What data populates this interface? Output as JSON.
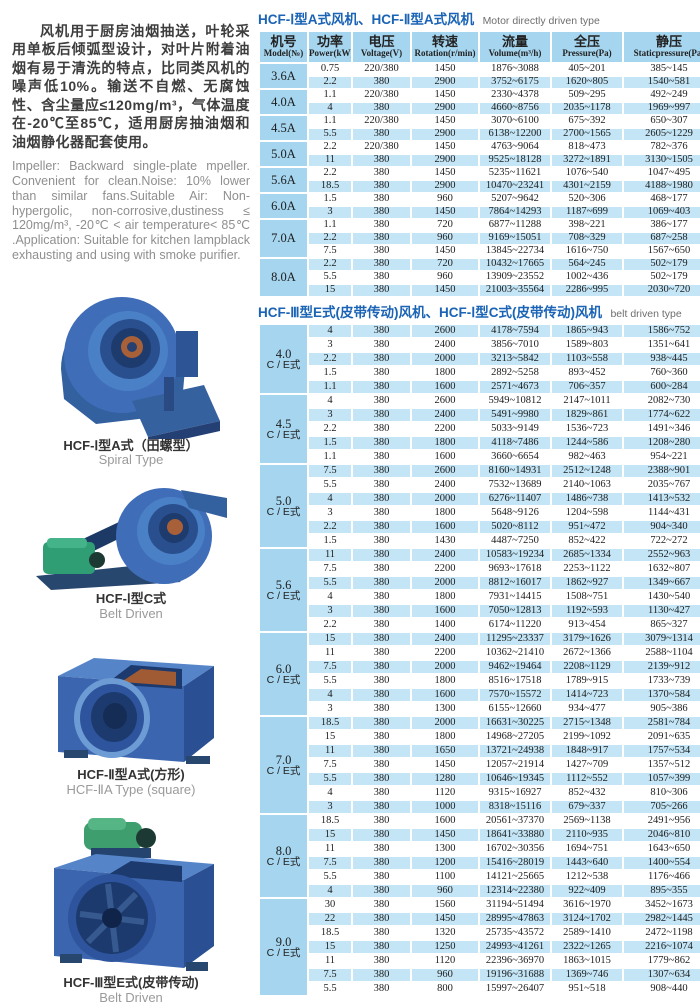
{
  "colors": {
    "title_blue": "#1a63b5",
    "header_bg": "#a5d5ef",
    "row_blue": "#c3e5f6",
    "fan_blue": "#3b66af"
  },
  "left": {
    "chinese_paragraph": "风机用于厨房油烟抽送，叶轮采用单板后倾弧型设计，对叶片附着油烟有易于清洗的特点，比同类风机的噪声低10%。输送不自燃、无腐蚀性、含尘量应≤120mg/m³，气体温度在-20℃至85℃，适用厨房抽油烟和油烟静化器配套使用。",
    "english_paragraph": "Impeller: Backward single-plate mpeller. Convenient for clean.Noise: 10% lower than similar fans.Suitable Air: Non-hypergolic, non-corrosive,dustiness ≤ 120mg/m³, -20℃ < air temperature< 85℃ .Application: Suitable for kitchen lampblack exhausting and using with smoke purifier.",
    "products": [
      {
        "caption_cn": "HCF-Ⅰ型A式（田螺型）",
        "caption_en": "Spiral Type"
      },
      {
        "caption_cn": "HCF-Ⅰ型C式",
        "caption_en": "Belt Driven"
      },
      {
        "caption_cn": "HCF-Ⅱ型A式(方形)",
        "caption_en": "HCF-ⅡA Type (square)"
      },
      {
        "caption_cn": "HCF-Ⅲ型E式(皮带传动)",
        "caption_en": "Belt Driven"
      }
    ]
  },
  "table1": {
    "title_cn": "HCF-Ⅰ型A式风机、HCF-Ⅱ型A式风机",
    "title_en": "Motor directly driven type",
    "headers": [
      {
        "cn": "机号",
        "en": "Model(№)"
      },
      {
        "cn": "功率",
        "en": "Power(kW)"
      },
      {
        "cn": "电压",
        "en": "Voltage(V)"
      },
      {
        "cn": "转速",
        "en": "Rotation(r/min)"
      },
      {
        "cn": "流量",
        "en": "Volume(m³/h)"
      },
      {
        "cn": "全压",
        "en": "Pressure(Pa)"
      },
      {
        "cn": "静压",
        "en": "Staticpressure(Pa)"
      }
    ],
    "groups": [
      {
        "model": "3.6A",
        "rows": [
          [
            "0.75",
            "220/380",
            "1450",
            "1876~3088",
            "405~201",
            "385~145"
          ],
          [
            "2.2",
            "380",
            "2900",
            "3752~6175",
            "1620~805",
            "1540~581"
          ]
        ]
      },
      {
        "model": "4.0A",
        "rows": [
          [
            "1.1",
            "220/380",
            "1450",
            "2330~4378",
            "509~295",
            "492~249"
          ],
          [
            "4",
            "380",
            "2900",
            "4660~8756",
            "2035~1178",
            "1969~997"
          ]
        ]
      },
      {
        "model": "4.5A",
        "rows": [
          [
            "1.1",
            "220/380",
            "1450",
            "3070~6100",
            "675~392",
            "650~307"
          ],
          [
            "5.5",
            "380",
            "2900",
            "6138~12200",
            "2700~1565",
            "2605~1229"
          ]
        ]
      },
      {
        "model": "5.0A",
        "rows": [
          [
            "2.2",
            "220/380",
            "1450",
            "4763~9064",
            "818~473",
            "782~376"
          ],
          [
            "11",
            "380",
            "2900",
            "9525~18128",
            "3272~1891",
            "3130~1505"
          ]
        ]
      },
      {
        "model": "5.6A",
        "rows": [
          [
            "2.2",
            "380",
            "1450",
            "5235~11621",
            "1076~540",
            "1047~495"
          ],
          [
            "18.5",
            "380",
            "2900",
            "10470~23241",
            "4301~2159",
            "4188~1980"
          ]
        ]
      },
      {
        "model": "6.0A",
        "rows": [
          [
            "1.5",
            "380",
            "960",
            "5207~9642",
            "520~306",
            "468~177"
          ],
          [
            "3",
            "380",
            "1450",
            "7864~14293",
            "1187~699",
            "1069~403"
          ]
        ]
      },
      {
        "model": "7.0A",
        "rows": [
          [
            "1.1",
            "380",
            "720",
            "6877~11288",
            "398~221",
            "386~177"
          ],
          [
            "2.2",
            "380",
            "960",
            "9169~15051",
            "708~329",
            "687~258"
          ],
          [
            "7.5",
            "380",
            "1450",
            "13845~22734",
            "1616~750",
            "1567~650"
          ]
        ]
      },
      {
        "model": "8.0A",
        "rows": [
          [
            "2.2",
            "380",
            "720",
            "10432~17665",
            "564~245",
            "502~179"
          ],
          [
            "5.5",
            "380",
            "960",
            "13909~23552",
            "1002~436",
            "502~179"
          ],
          [
            "15",
            "380",
            "1450",
            "21003~35564",
            "2286~995",
            "2030~720"
          ]
        ]
      }
    ]
  },
  "table2": {
    "title_cn": "HCF-Ⅲ型E式(皮带传动)风机、HCF-Ⅰ型C式(皮带传动)风机",
    "title_en": "belt driven type",
    "groups": [
      {
        "model": "4.0",
        "model2": "C / E式",
        "rows": [
          [
            "4",
            "380",
            "2600",
            "4178~7594",
            "1865~943",
            "1586~752"
          ],
          [
            "3",
            "380",
            "2400",
            "3856~7010",
            "1589~803",
            "1351~641"
          ],
          [
            "2.2",
            "380",
            "2000",
            "3213~5842",
            "1103~558",
            "938~445"
          ],
          [
            "1.5",
            "380",
            "1800",
            "2892~5258",
            "893~452",
            "760~360"
          ],
          [
            "1.1",
            "380",
            "1600",
            "2571~4673",
            "706~357",
            "600~284"
          ]
        ]
      },
      {
        "model": "4.5",
        "model2": "C / E式",
        "rows": [
          [
            "4",
            "380",
            "2600",
            "5949~10812",
            "2147~1011",
            "2082~730"
          ],
          [
            "3",
            "380",
            "2400",
            "5491~9980",
            "1829~861",
            "1774~622"
          ],
          [
            "2.2",
            "380",
            "2200",
            "5033~9149",
            "1536~723",
            "1491~346"
          ],
          [
            "1.5",
            "380",
            "1800",
            "4118~7486",
            "1244~586",
            "1208~280"
          ],
          [
            "1.1",
            "380",
            "1600",
            "3660~6654",
            "982~463",
            "954~221"
          ]
        ]
      },
      {
        "model": "5.0",
        "model2": "C / E式",
        "rows": [
          [
            "7.5",
            "380",
            "2600",
            "8160~14931",
            "2512~1248",
            "2388~901"
          ],
          [
            "5.5",
            "380",
            "2400",
            "7532~13689",
            "2140~1063",
            "2035~767"
          ],
          [
            "4",
            "380",
            "2000",
            "6276~11407",
            "1486~738",
            "1413~532"
          ],
          [
            "3",
            "380",
            "1800",
            "5648~9126",
            "1204~598",
            "1144~431"
          ],
          [
            "2.2",
            "380",
            "1600",
            "5020~8112",
            "951~472",
            "904~340"
          ],
          [
            "1.5",
            "380",
            "1430",
            "4487~7250",
            "852~422",
            "722~272"
          ]
        ]
      },
      {
        "model": "5.6",
        "model2": "C / E式",
        "rows": [
          [
            "11",
            "380",
            "2400",
            "10583~19234",
            "2685~1334",
            "2552~963"
          ],
          [
            "7.5",
            "380",
            "2200",
            "9693~17618",
            "2253~1122",
            "1632~807"
          ],
          [
            "5.5",
            "380",
            "2000",
            "8812~16017",
            "1862~927",
            "1349~667"
          ],
          [
            "4",
            "380",
            "1800",
            "7931~14415",
            "1508~751",
            "1430~540"
          ],
          [
            "3",
            "380",
            "1600",
            "7050~12813",
            "1192~593",
            "1130~427"
          ],
          [
            "2.2",
            "380",
            "1400",
            "6174~11220",
            "913~454",
            "865~327"
          ]
        ]
      },
      {
        "model": "6.0",
        "model2": "C / E式",
        "rows": [
          [
            "15",
            "380",
            "2400",
            "11295~23337",
            "3179~1626",
            "3079~1314"
          ],
          [
            "11",
            "380",
            "2200",
            "10362~21410",
            "2672~1366",
            "2588~1104"
          ],
          [
            "7.5",
            "380",
            "2000",
            "9462~19464",
            "2208~1129",
            "2139~912"
          ],
          [
            "5.5",
            "380",
            "1800",
            "8516~17518",
            "1789~915",
            "1733~739"
          ],
          [
            "4",
            "380",
            "1600",
            "7570~15572",
            "1414~723",
            "1370~584"
          ],
          [
            "3",
            "380",
            "1300",
            "6155~12660",
            "934~477",
            "905~386"
          ]
        ]
      },
      {
        "model": "7.0",
        "model2": "C / E式",
        "rows": [
          [
            "18.5",
            "380",
            "2000",
            "16631~30225",
            "2715~1348",
            "2581~784"
          ],
          [
            "15",
            "380",
            "1800",
            "14968~27205",
            "2199~1092",
            "2091~635"
          ],
          [
            "11",
            "380",
            "1650",
            "13721~24938",
            "1848~917",
            "1757~534"
          ],
          [
            "7.5",
            "380",
            "1450",
            "12057~21914",
            "1427~709",
            "1357~512"
          ],
          [
            "5.5",
            "380",
            "1280",
            "10646~19345",
            "1112~552",
            "1057~399"
          ],
          [
            "4",
            "380",
            "1120",
            "9315~16927",
            "852~432",
            "810~306"
          ],
          [
            "3",
            "380",
            "1000",
            "8318~15116",
            "679~337",
            "705~266"
          ]
        ]
      },
      {
        "model": "8.0",
        "model2": "C / E式",
        "rows": [
          [
            "18.5",
            "380",
            "1600",
            "20561~37370",
            "2569~1138",
            "2491~956"
          ],
          [
            "15",
            "380",
            "1450",
            "18641~33880",
            "2110~935",
            "2046~810"
          ],
          [
            "11",
            "380",
            "1300",
            "16702~30356",
            "1694~751",
            "1643~650"
          ],
          [
            "7.5",
            "380",
            "1200",
            "15416~28019",
            "1443~640",
            "1400~554"
          ],
          [
            "5.5",
            "380",
            "1100",
            "14121~25665",
            "1212~538",
            "1176~466"
          ],
          [
            "4",
            "380",
            "960",
            "12314~22380",
            "922~409",
            "895~355"
          ]
        ]
      },
      {
        "model": "9.0",
        "model2": "C / E式",
        "rows": [
          [
            "30",
            "380",
            "1560",
            "31194~51494",
            "3616~1970",
            "3452~1673"
          ],
          [
            "22",
            "380",
            "1450",
            "28995~47863",
            "3124~1702",
            "2982~1445"
          ],
          [
            "18.5",
            "380",
            "1320",
            "25735~43572",
            "2589~1410",
            "2472~1198"
          ],
          [
            "15",
            "380",
            "1250",
            "24993~41261",
            "2322~1265",
            "2216~1074"
          ],
          [
            "11",
            "380",
            "1120",
            "22396~36970",
            "1863~1015",
            "1779~862"
          ],
          [
            "7.5",
            "380",
            "960",
            "19196~31688",
            "1369~746",
            "1307~634"
          ],
          [
            "5.5",
            "380",
            "800",
            "15997~26407",
            "951~518",
            "908~440"
          ]
        ]
      }
    ]
  }
}
